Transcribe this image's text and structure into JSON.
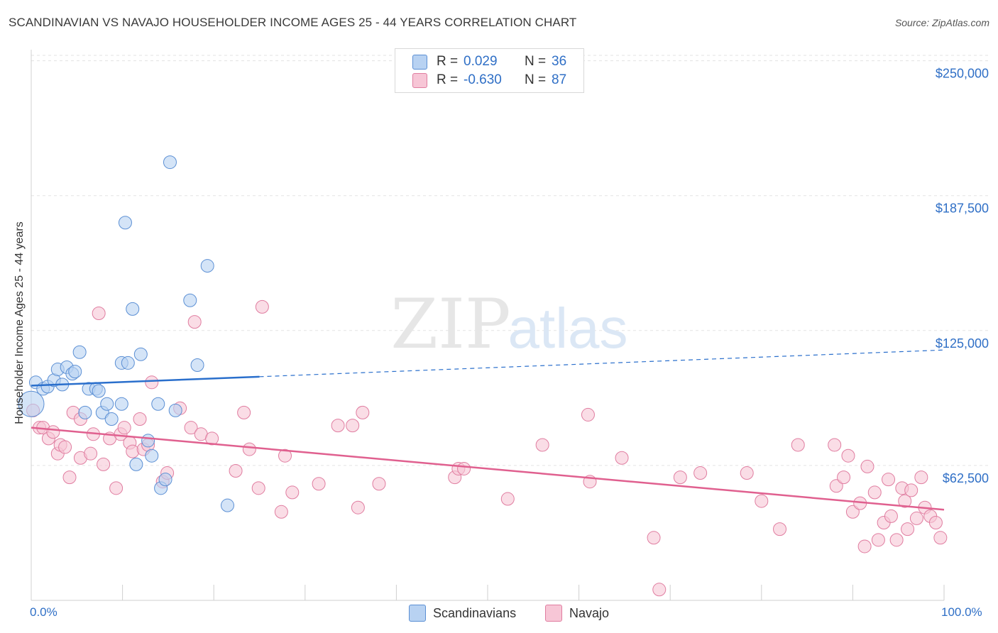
{
  "title": "SCANDINAVIAN VS NAVAJO HOUSEHOLDER INCOME AGES 25 - 44 YEARS CORRELATION CHART",
  "source": "Source: ZipAtlas.com",
  "watermark": {
    "zip": "ZIP",
    "atlas": "atlas"
  },
  "legend_top": {
    "r_label": "R =",
    "n_label": "N =",
    "rows": [
      {
        "r": "0.029",
        "n": "36"
      },
      {
        "r": "-0.630",
        "n": "87"
      }
    ]
  },
  "colors": {
    "scandinavian_fill": "#b8d2f2",
    "scandinavian_stroke": "#5b8fd4",
    "scandinavian_line": "#2a6fcc",
    "navajo_fill": "#f7c6d6",
    "navajo_stroke": "#e07da0",
    "navajo_line": "#e0608f",
    "axis_label": "#2f6fc6",
    "grid": "#e3e3e3"
  },
  "chart_data": {
    "type": "scatter",
    "title": "SCANDINAVIAN VS NAVAJO HOUSEHOLDER INCOME AGES 25 - 44 YEARS CORRELATION CHART",
    "xlabel": "",
    "ylabel": "Householder Income Ages 25 - 44 years",
    "xlim": [
      0,
      100
    ],
    "ylim": [
      0,
      265000
    ],
    "x_tick_labels": [
      "0.0%",
      "100.0%"
    ],
    "y_ticks": [
      62500,
      125000,
      187500,
      250000
    ],
    "y_tick_labels": [
      "$62,500",
      "$125,000",
      "$187,500",
      "$250,000"
    ],
    "grid": true,
    "legend_position": "bottom",
    "series": [
      {
        "name": "Scandinavians",
        "r": 0.029,
        "n": 36,
        "trend": {
          "x0": 0,
          "y0": 99500,
          "x_solid_end": 25,
          "x1": 100,
          "y1": 116000
        },
        "points": [
          [
            0.0,
            91000
          ],
          [
            0.5,
            101000
          ],
          [
            1.3,
            98000
          ],
          [
            1.8,
            99000
          ],
          [
            2.5,
            102000
          ],
          [
            2.9,
            107000
          ],
          [
            3.4,
            100000
          ],
          [
            3.9,
            108000
          ],
          [
            4.5,
            105000
          ],
          [
            4.8,
            106000
          ],
          [
            5.3,
            115000
          ],
          [
            5.9,
            87000
          ],
          [
            6.3,
            98000
          ],
          [
            7.1,
            98000
          ],
          [
            7.4,
            97000
          ],
          [
            7.8,
            87000
          ],
          [
            8.3,
            91000
          ],
          [
            8.8,
            84000
          ],
          [
            9.9,
            91000
          ],
          [
            9.9,
            110000
          ],
          [
            10.3,
            175000
          ],
          [
            10.6,
            110000
          ],
          [
            11.1,
            135000
          ],
          [
            11.5,
            63000
          ],
          [
            12.0,
            114000
          ],
          [
            12.8,
            74000
          ],
          [
            13.2,
            67000
          ],
          [
            13.9,
            91000
          ],
          [
            14.2,
            52000
          ],
          [
            14.7,
            56000
          ],
          [
            15.2,
            203000
          ],
          [
            15.8,
            88000
          ],
          [
            17.4,
            139000
          ],
          [
            18.2,
            109000
          ],
          [
            19.3,
            155000
          ],
          [
            21.5,
            44000
          ]
        ]
      },
      {
        "name": "Navajo",
        "r": -0.63,
        "n": 87,
        "trend": {
          "x0": 0,
          "y0": 80000,
          "x1": 100,
          "y1": 42000
        },
        "points": [
          [
            0.2,
            88000
          ],
          [
            0.9,
            80000
          ],
          [
            1.3,
            80000
          ],
          [
            1.9,
            75000
          ],
          [
            2.4,
            78000
          ],
          [
            2.9,
            68000
          ],
          [
            3.2,
            72000
          ],
          [
            3.7,
            71000
          ],
          [
            4.2,
            57000
          ],
          [
            4.6,
            87000
          ],
          [
            5.4,
            84000
          ],
          [
            5.4,
            66000
          ],
          [
            6.5,
            68000
          ],
          [
            6.8,
            77000
          ],
          [
            7.4,
            133000
          ],
          [
            7.9,
            63000
          ],
          [
            8.6,
            75000
          ],
          [
            9.3,
            52000
          ],
          [
            9.8,
            77000
          ],
          [
            10.2,
            80000
          ],
          [
            10.8,
            73000
          ],
          [
            11.1,
            69000
          ],
          [
            11.9,
            84000
          ],
          [
            12.3,
            70000
          ],
          [
            12.8,
            72000
          ],
          [
            13.2,
            101000
          ],
          [
            14.4,
            55000
          ],
          [
            14.9,
            59000
          ],
          [
            16.3,
            89000
          ],
          [
            17.5,
            80000
          ],
          [
            17.9,
            129000
          ],
          [
            18.6,
            77000
          ],
          [
            19.8,
            75000
          ],
          [
            22.4,
            60000
          ],
          [
            23.3,
            87000
          ],
          [
            23.9,
            70000
          ],
          [
            24.9,
            52000
          ],
          [
            25.3,
            136000
          ],
          [
            27.4,
            41000
          ],
          [
            27.8,
            67000
          ],
          [
            28.6,
            50000
          ],
          [
            31.5,
            54000
          ],
          [
            33.6,
            81000
          ],
          [
            35.2,
            81000
          ],
          [
            35.8,
            43000
          ],
          [
            36.3,
            87000
          ],
          [
            38.1,
            54000
          ],
          [
            46.4,
            57000
          ],
          [
            46.8,
            61000
          ],
          [
            47.4,
            61000
          ],
          [
            52.2,
            47000
          ],
          [
            56.0,
            72000
          ],
          [
            61.0,
            86000
          ],
          [
            61.2,
            55000
          ],
          [
            64.7,
            66000
          ],
          [
            68.2,
            29000
          ],
          [
            68.8,
            5000
          ],
          [
            71.1,
            57000
          ],
          [
            73.3,
            59000
          ],
          [
            78.4,
            59000
          ],
          [
            80.0,
            46000
          ],
          [
            82.0,
            33000
          ],
          [
            84.0,
            72000
          ],
          [
            88.0,
            72000
          ],
          [
            88.2,
            53000
          ],
          [
            89.0,
            57000
          ],
          [
            89.5,
            67000
          ],
          [
            90.0,
            41000
          ],
          [
            90.8,
            45000
          ],
          [
            91.3,
            25000
          ],
          [
            91.6,
            62000
          ],
          [
            92.4,
            50000
          ],
          [
            92.8,
            28000
          ],
          [
            93.4,
            36000
          ],
          [
            93.9,
            56000
          ],
          [
            94.2,
            39000
          ],
          [
            94.8,
            28000
          ],
          [
            95.4,
            52000
          ],
          [
            95.7,
            46000
          ],
          [
            96.0,
            33000
          ],
          [
            96.4,
            51000
          ],
          [
            97.0,
            38000
          ],
          [
            97.5,
            57000
          ],
          [
            97.9,
            43000
          ],
          [
            98.5,
            39000
          ],
          [
            99.1,
            36000
          ],
          [
            99.6,
            29000
          ]
        ]
      }
    ]
  }
}
